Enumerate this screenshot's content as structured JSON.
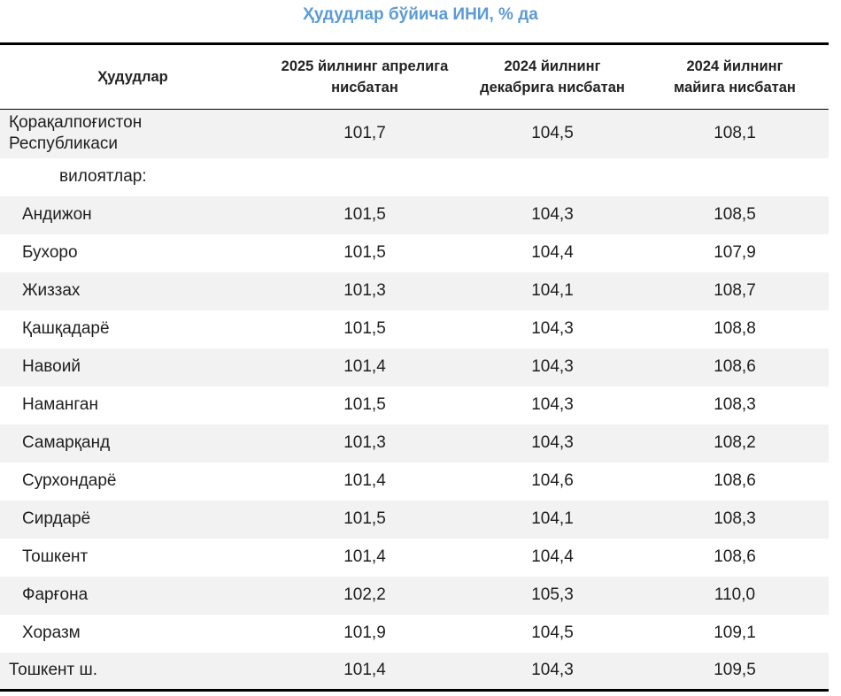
{
  "title": "Ҳудудлар бўйича ИНИ, % да",
  "headers": {
    "col0": "Ҳудудлар",
    "col1_line1": "2025 йилнинг апрелига",
    "col1_line2": "нисбатан",
    "col2_line1": "2024 йилнинг",
    "col2_line2": "декабрига нисбатан",
    "col3_line1": "2024 йилнинг",
    "col3_line2": "майига нисбатан"
  },
  "rows": [
    {
      "name_line1": "Қорақалпоғистон",
      "name_line2": "Республикаси",
      "v1": "101,7",
      "v2": "104,5",
      "v3": "108,1"
    },
    {
      "name": "вилоятлар:"
    },
    {
      "name": "Андижон",
      "v1": "101,5",
      "v2": "104,3",
      "v3": "108,5"
    },
    {
      "name": "Бухоро",
      "v1": "101,5",
      "v2": "104,4",
      "v3": "107,9"
    },
    {
      "name": "Жиззах",
      "v1": "101,3",
      "v2": "104,1",
      "v3": "108,7"
    },
    {
      "name": "Қашқадарё",
      "v1": "101,5",
      "v2": "104,3",
      "v3": "108,8"
    },
    {
      "name": "Навоий",
      "v1": "101,4",
      "v2": "104,3",
      "v3": "108,6"
    },
    {
      "name": "Наманган",
      "v1": "101,5",
      "v2": "104,3",
      "v3": "108,3"
    },
    {
      "name": "Самарқанд",
      "v1": "101,3",
      "v2": "104,3",
      "v3": "108,2"
    },
    {
      "name": "Сурхондарё",
      "v1": "101,4",
      "v2": "104,6",
      "v3": "108,6"
    },
    {
      "name": "Сирдарё",
      "v1": "101,5",
      "v2": "104,1",
      "v3": "108,3"
    },
    {
      "name": "Тошкент",
      "v1": "101,4",
      "v2": "104,4",
      "v3": "108,6"
    },
    {
      "name": "Фарғона",
      "v1": "102,2",
      "v2": "105,3",
      "v3": "110,0"
    },
    {
      "name": "Хоразм",
      "v1": "101,9",
      "v2": "104,5",
      "v3": "109,1"
    },
    {
      "name": "Тошкент ш.",
      "v1": "101,4",
      "v2": "104,3",
      "v3": "109,5"
    }
  ]
}
